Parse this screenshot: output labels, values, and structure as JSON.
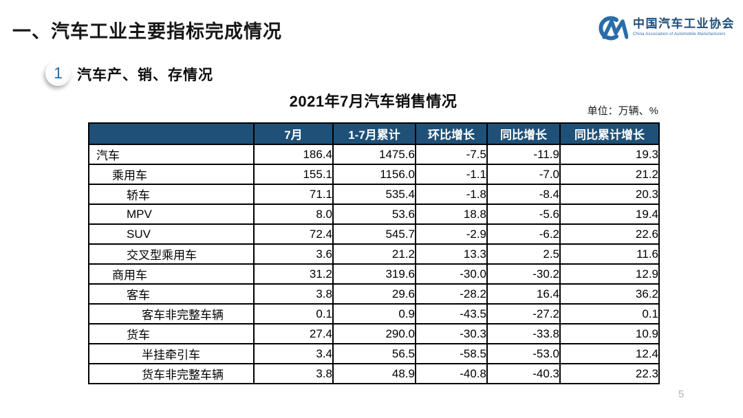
{
  "page": {
    "title": "一、汽车工业主要指标完成情况",
    "page_number": "5"
  },
  "logo": {
    "mark": "CM",
    "name_cn": "中国汽车工业协会",
    "name_en": "China Association of Automobile Manufacturers"
  },
  "section": {
    "number": "1",
    "title": "汽车产、销、存情况"
  },
  "table": {
    "title": "2021年7月汽车销售情况",
    "unit_label": "单位：万辆、%",
    "columns": [
      "",
      "7月",
      "1-7月累计",
      "环比增长",
      "同比增长",
      "同比累计增长"
    ],
    "rows": [
      {
        "label": "汽车",
        "indent": 0,
        "style": "blue",
        "values": [
          "186.4",
          "1475.6",
          "-7.5",
          "-11.9",
          "19.3"
        ]
      },
      {
        "label": "乘用车",
        "indent": 1,
        "style": "gray",
        "values": [
          "155.1",
          "1156.0",
          "-1.1",
          "-7.0",
          "21.2"
        ]
      },
      {
        "label": "轿车",
        "indent": 2,
        "style": "white",
        "values": [
          "71.1",
          "535.4",
          "-1.8",
          "-8.4",
          "20.3"
        ]
      },
      {
        "label": "MPV",
        "indent": 2,
        "style": "white",
        "values": [
          "8.0",
          "53.6",
          "18.8",
          "-5.6",
          "19.4"
        ]
      },
      {
        "label": "SUV",
        "indent": 2,
        "style": "white",
        "values": [
          "72.4",
          "545.7",
          "-2.9",
          "-6.2",
          "22.6"
        ]
      },
      {
        "label": "交叉型乘用车",
        "indent": 2,
        "style": "white",
        "values": [
          "3.6",
          "21.2",
          "13.3",
          "2.5",
          "11.6"
        ]
      },
      {
        "label": "商用车",
        "indent": 1,
        "style": "gray",
        "values": [
          "31.2",
          "319.6",
          "-30.0",
          "-30.2",
          "12.9"
        ]
      },
      {
        "label": "客车",
        "indent": 2,
        "style": "white",
        "values": [
          "3.8",
          "29.6",
          "-28.2",
          "16.4",
          "36.2"
        ]
      },
      {
        "label": "客车非完整车辆",
        "indent": 3,
        "style": "white",
        "values": [
          "0.1",
          "0.9",
          "-43.5",
          "-27.2",
          "0.1"
        ]
      },
      {
        "label": "货车",
        "indent": 2,
        "style": "white",
        "values": [
          "27.4",
          "290.0",
          "-30.3",
          "-33.8",
          "10.9"
        ]
      },
      {
        "label": "半挂牵引车",
        "indent": 3,
        "style": "white",
        "values": [
          "3.4",
          "56.5",
          "-58.5",
          "-53.0",
          "12.4"
        ]
      },
      {
        "label": "货车非完整车辆",
        "indent": 3,
        "style": "white",
        "values": [
          "3.8",
          "48.9",
          "-40.8",
          "-40.3",
          "22.3"
        ]
      }
    ]
  },
  "colors": {
    "header_bg": "#1F5078",
    "row_blue": "#BDD7EE",
    "row_gray": "#D9D9D9",
    "logo_blue": "#2B6CA9",
    "logo_dark_blue": "#1F4E79"
  }
}
